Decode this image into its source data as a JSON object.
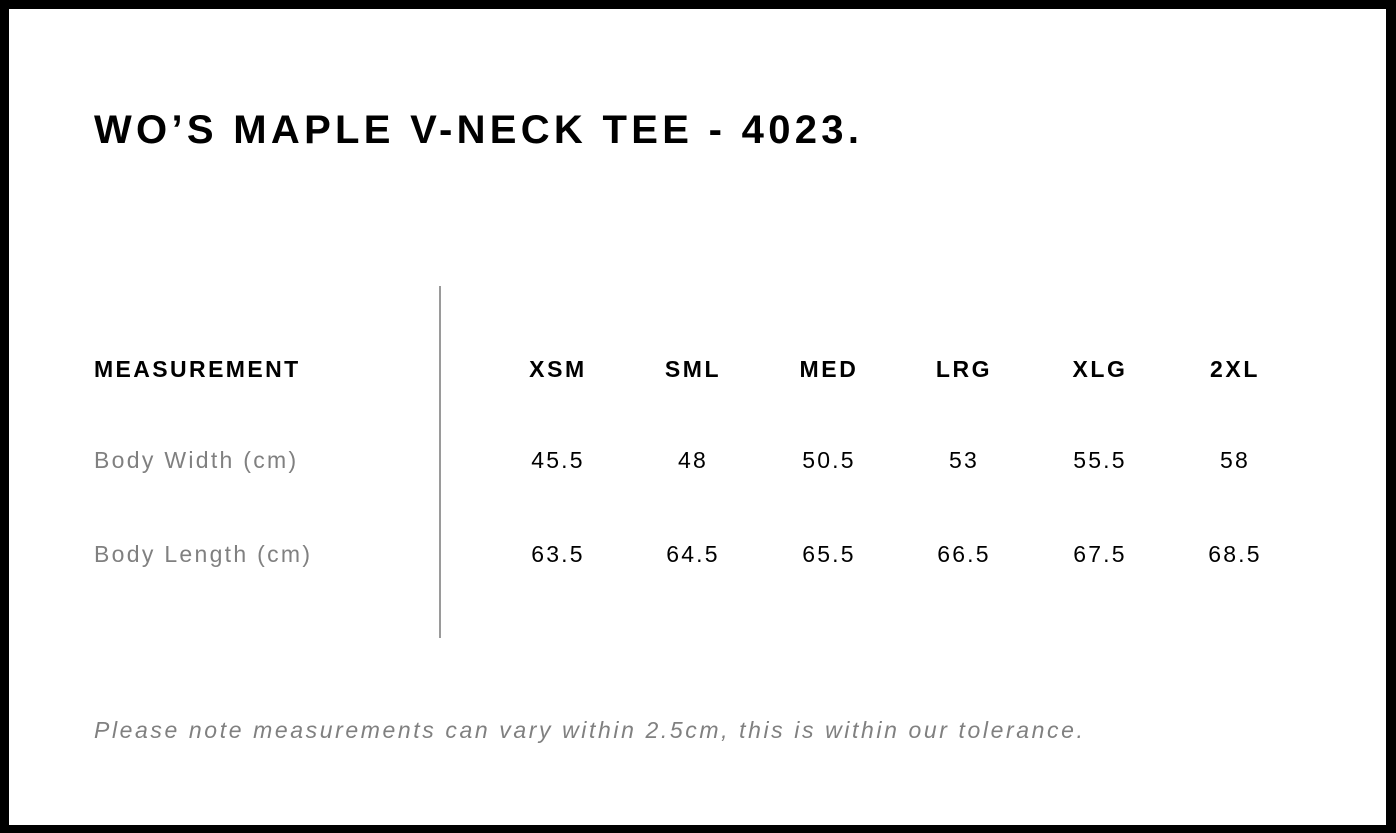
{
  "title": "WO’S MAPLE V-NECK TEE - 4023.",
  "table": {
    "header_label": "MEASUREMENT",
    "sizes": [
      "XSM",
      "SML",
      "MED",
      "LRG",
      "XLG",
      "2XL"
    ],
    "rows": [
      {
        "label": "Body Width (cm)",
        "values": [
          "45.5",
          "48",
          "50.5",
          "53",
          "55.5",
          "58"
        ]
      },
      {
        "label": "Body Length (cm)",
        "values": [
          "63.5",
          "64.5",
          "65.5",
          "66.5",
          "67.5",
          "68.5"
        ]
      }
    ]
  },
  "note": "Please note measurements can vary within 2.5cm, this is within our tolerance."
}
